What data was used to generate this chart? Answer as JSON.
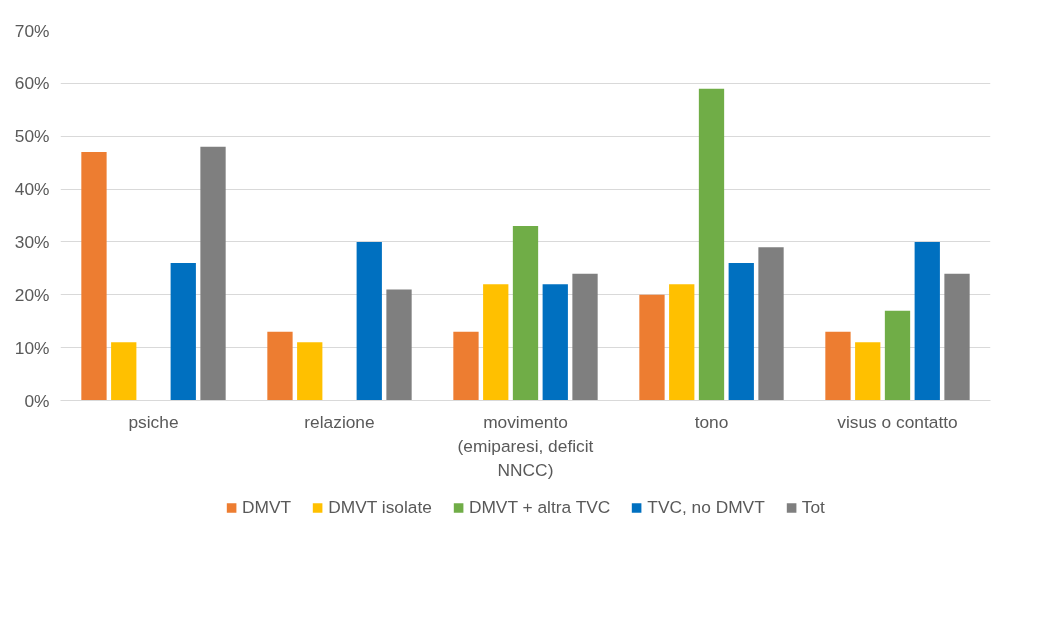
{
  "chart_data": {
    "type": "bar",
    "categories": [
      "psiche",
      "relazione",
      "movimento (emiparesi, deficit NNCC)",
      "tono",
      "visus o contatto"
    ],
    "series": [
      {
        "name": "DMVT",
        "color": "#ed7d31",
        "values": [
          47,
          13,
          13,
          20,
          13
        ]
      },
      {
        "name": "DMVT isolate",
        "color": "#ffc000",
        "values": [
          11,
          11,
          22,
          22,
          11
        ]
      },
      {
        "name": "DMVT + altra TVC",
        "color": "#70ad47",
        "values": [
          null,
          null,
          33,
          59,
          17
        ]
      },
      {
        "name": "TVC, no DMVT",
        "color": "#0070c0",
        "values": [
          26,
          30,
          22,
          26,
          30
        ]
      },
      {
        "name": "Tot",
        "color": "#7f7f7f",
        "values": [
          48,
          21,
          24,
          29,
          24
        ]
      }
    ],
    "ylim": [
      0,
      70
    ],
    "yticks": [
      {
        "value": 0,
        "label": "0%"
      },
      {
        "value": 10,
        "label": "10%"
      },
      {
        "value": 20,
        "label": "20%"
      },
      {
        "value": 30,
        "label": "30%"
      },
      {
        "value": 40,
        "label": "40%"
      },
      {
        "value": 50,
        "label": "50%"
      },
      {
        "value": 60,
        "label": "60%"
      },
      {
        "value": 70,
        "label": "70%"
      }
    ],
    "grid": "y",
    "legend": "bottom"
  }
}
